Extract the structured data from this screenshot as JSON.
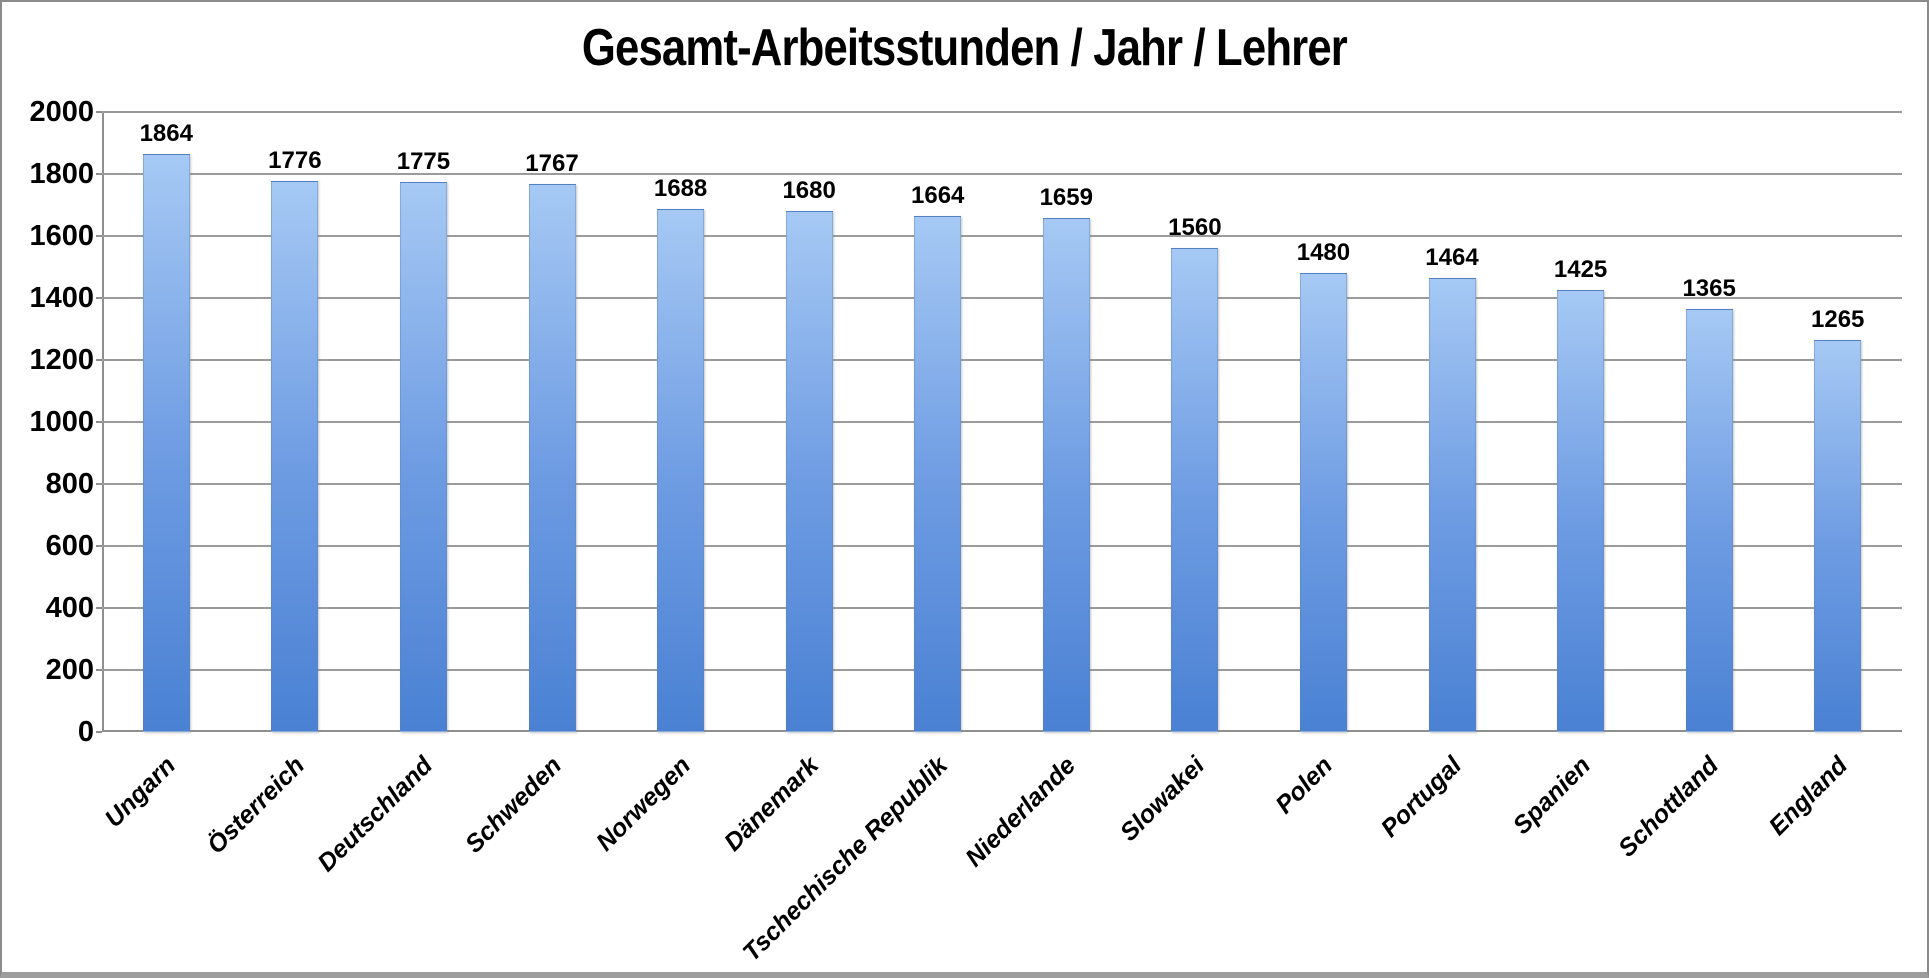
{
  "chart_data": {
    "type": "bar",
    "title": "Gesamt-Arbeitsstunden / Jahr / Lehrer",
    "categories": [
      "Ungarn",
      "Österreich",
      "Deutschland",
      "Schweden",
      "Norwegen",
      "Dänemark",
      "Tschechische Republik",
      "Niederlande",
      "Slowakei",
      "Polen",
      "Portugal",
      "Spanien",
      "Schottland",
      "England"
    ],
    "values": [
      1864,
      1776,
      1775,
      1767,
      1688,
      1680,
      1664,
      1659,
      1560,
      1480,
      1464,
      1425,
      1365,
      1265
    ],
    "y_ticks": [
      0,
      200,
      400,
      600,
      800,
      1000,
      1200,
      1400,
      1600,
      1800,
      2000
    ],
    "ylim": [
      0,
      2000
    ],
    "xlabel": "",
    "ylabel": "",
    "grid": "horizontal",
    "legend_position": "none",
    "data_labels": "above-bars",
    "bar_color_top": "#a6c9f4",
    "bar_color_mid": "#6e9ce3",
    "bar_color_bottom": "#4a81d3",
    "gridline_color": "#9b9b9b",
    "text_color": "#000000"
  }
}
